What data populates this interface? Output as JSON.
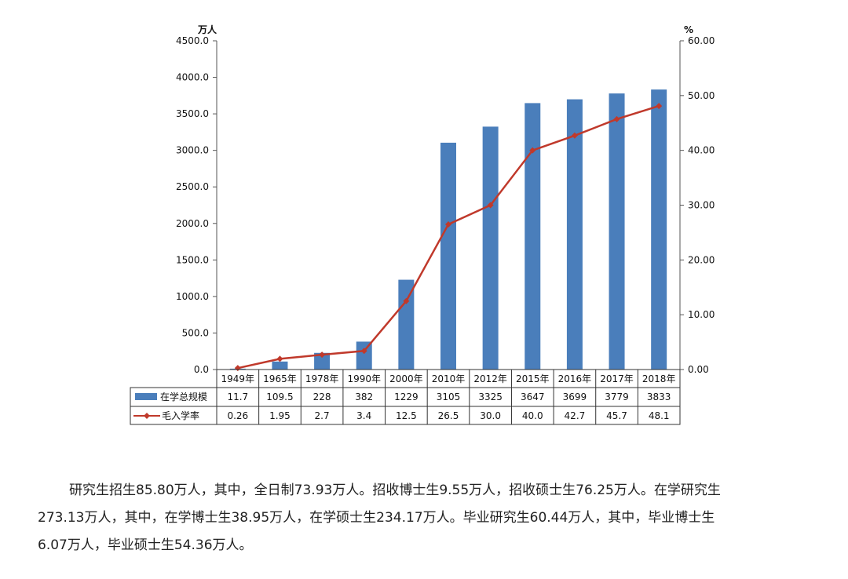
{
  "chart_data": {
    "type": "bar+line",
    "categories": [
      "1949年",
      "1965年",
      "1978年",
      "1990年",
      "2000年",
      "2010年",
      "2012年",
      "2015年",
      "2016年",
      "2017年",
      "2018年"
    ],
    "series": [
      {
        "name": "在学总规模",
        "type": "bar",
        "axis": "left",
        "color": "#4a7ebb",
        "values": [
          11.7,
          109.5,
          228,
          382,
          1229,
          3105,
          3325,
          3647,
          3699,
          3779,
          3833
        ],
        "labels": [
          "11.7",
          "109.5",
          "228",
          "382",
          "1229",
          "3105",
          "3325",
          "3647",
          "3699",
          "3779",
          "3833"
        ]
      },
      {
        "name": "毛入学率",
        "type": "line",
        "axis": "right",
        "color": "#c0392b",
        "values": [
          0.26,
          1.95,
          2.7,
          3.4,
          12.5,
          26.5,
          30.0,
          40.0,
          42.7,
          45.7,
          48.1
        ],
        "labels": [
          "0.26",
          "1.95",
          "2.7",
          "3.4",
          "12.5",
          "26.5",
          "30.0",
          "40.0",
          "42.7",
          "45.7",
          "48.1"
        ]
      }
    ],
    "y_left": {
      "unit": "万人",
      "ylim": [
        0,
        4500
      ],
      "ticks": [
        "0.0",
        "500.0",
        "1000.0",
        "1500.0",
        "2000.0",
        "2500.0",
        "3000.0",
        "3500.0",
        "4000.0",
        "4500.0"
      ]
    },
    "y_right": {
      "unit": "%",
      "ylim": [
        0,
        60
      ],
      "ticks": [
        "0.00",
        "10.00",
        "20.00",
        "30.00",
        "40.00",
        "50.00",
        "60.00"
      ]
    },
    "grid": false,
    "legend": "data-table-below"
  },
  "paragraph": {
    "line1": "研究生招生85.80万人，其中，全日制73.93万人。招收博士生9.55万人，招收硕士生76.25万人。在学研究生",
    "line2": "273.13万人，其中，在学博士生38.95万人，在学硕士生234.17万人。毕业研究生60.44万人，其中，毕业博士生",
    "line3": "6.07万人，毕业硕士生54.36万人。"
  }
}
